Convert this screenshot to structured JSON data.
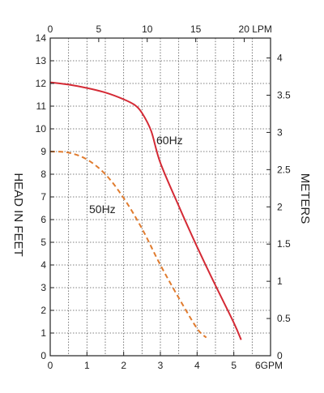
{
  "chart_data": {
    "type": "line",
    "title": "",
    "ylabel_left": "HEAD IN FEET",
    "ylabel_right": "METERS",
    "x_bottom": {
      "unit_suffix": "GPM",
      "range": [
        0,
        6
      ],
      "ticks": [
        0,
        1,
        2,
        3,
        4,
        5,
        6
      ],
      "tick_labels": [
        "0",
        "1",
        "2",
        "3",
        "4",
        "5",
        "6GPM"
      ]
    },
    "x_top": {
      "unit_suffix": "LPM",
      "ticks": [
        0,
        5,
        10,
        15,
        20
      ],
      "tick_labels": [
        "0",
        "5",
        "10",
        "15",
        "20 LPM"
      ]
    },
    "y_left": {
      "range": [
        0,
        14
      ],
      "ticks": [
        0,
        1,
        2,
        3,
        4,
        5,
        6,
        7,
        8,
        9,
        10,
        11,
        12,
        13,
        14
      ],
      "tick_labels": [
        "0",
        "1",
        "2",
        "3",
        "4",
        "5",
        "6",
        "7",
        "8",
        "9",
        "10",
        "11",
        "12",
        "13",
        "14"
      ]
    },
    "y_right": {
      "ticks": [
        0,
        0.5,
        1,
        1.5,
        2,
        2.5,
        3,
        3.5,
        4
      ],
      "tick_labels": [
        "0",
        "0.5",
        "1",
        "1.5",
        "2",
        "2.5",
        "3",
        "3.5",
        "4"
      ]
    },
    "grid": "dotted",
    "series": [
      {
        "name": "60Hz",
        "color": "#d42a35",
        "style": "solid",
        "x": [
          0,
          0.5,
          1.0,
          1.5,
          2.0,
          2.3,
          2.5,
          2.75,
          3.0,
          3.5,
          4.0,
          4.5,
          5.0,
          5.2
        ],
        "y": [
          12.05,
          11.95,
          11.8,
          11.6,
          11.3,
          11.05,
          10.7,
          9.9,
          8.5,
          6.6,
          4.8,
          3.1,
          1.45,
          0.7
        ]
      },
      {
        "name": "50Hz",
        "color": "#e07b2e",
        "style": "dashed",
        "x": [
          0,
          0.5,
          1.0,
          1.5,
          2.0,
          2.5,
          3.0,
          3.5,
          4.0,
          4.25
        ],
        "y": [
          9.0,
          8.95,
          8.65,
          8.0,
          6.95,
          5.6,
          4.0,
          2.55,
          1.2,
          0.8
        ]
      }
    ]
  }
}
